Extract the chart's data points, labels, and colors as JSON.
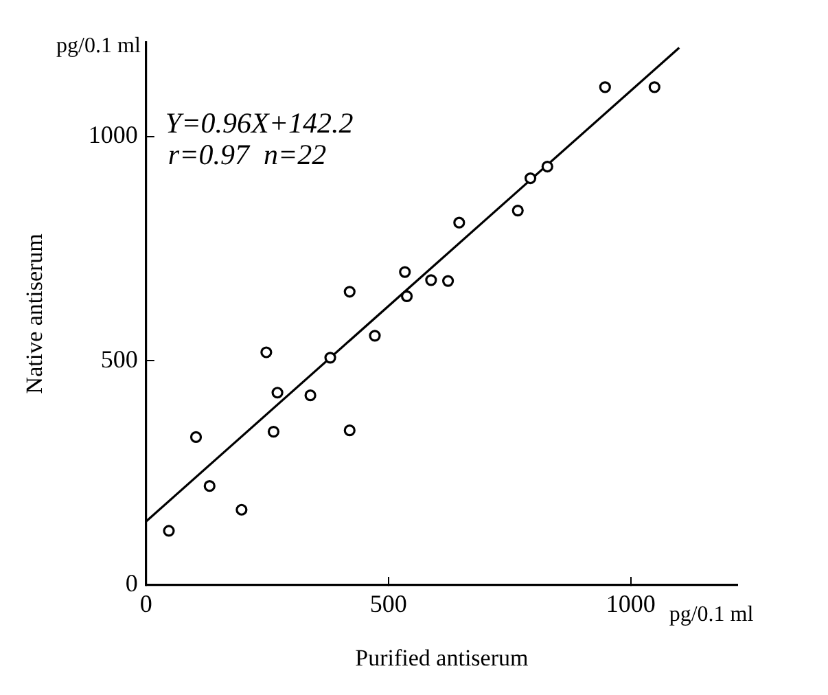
{
  "chart_data": {
    "type": "scatter",
    "xlabel": "Purified antiserum",
    "ylabel": "Native antiserum",
    "annotations": [
      "Y=0.96X+142.2",
      "r=0.97  n=22",
      "pg/0.1 ml",
      "pg/0.1 ml"
    ],
    "xlim": [
      0,
      1220
    ],
    "ylim": [
      0,
      1210
    ],
    "xticks": [
      0,
      500,
      1000
    ],
    "yticks": [
      0,
      500,
      1000
    ],
    "series": [
      {
        "color": "#000000",
        "marker": "circle",
        "x": [
          47,
          103,
          131,
          197,
          248,
          271,
          263,
          339,
          380,
          420,
          472,
          420,
          534,
          538,
          588,
          623,
          646,
          767,
          793,
          828,
          947,
          1049
        ],
        "values": [
          121,
          330,
          221,
          168,
          519,
          429,
          342,
          423,
          507,
          345,
          556,
          654,
          698,
          644,
          680,
          678,
          808,
          835,
          907,
          933,
          1110,
          1110
        ]
      },
      {
        "type": "line",
        "color": "#000000",
        "x": [
          0,
          1100
        ],
        "values": [
          142,
          1198
        ]
      }
    ]
  }
}
